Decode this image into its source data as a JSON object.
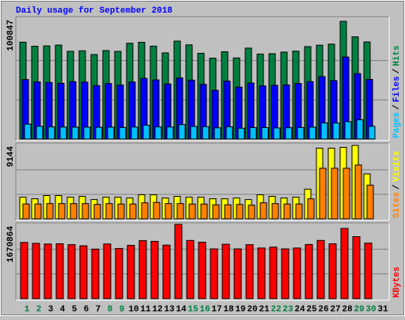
{
  "title": "Daily usage for September 2018",
  "legend_separator": "/",
  "chart_data": [
    {
      "type": "bar",
      "ylim": [
        0,
        100847
      ],
      "yticks": [
        100847
      ],
      "series": [
        {
          "name": "Hits",
          "color": "#008040",
          "values": [
            83000,
            79500,
            79800,
            80500,
            75200,
            75600,
            72400,
            75800,
            75100,
            82100,
            82900,
            79600,
            73800,
            83900,
            80700,
            73500,
            69300,
            74800,
            69500,
            77900,
            72800,
            73100,
            74500,
            75300,
            79200,
            80400,
            81300,
            100847,
            87600,
            83200,
            null
          ]
        },
        {
          "name": "Files",
          "color": "#0000ff",
          "values": [
            51000,
            49000,
            48500,
            47800,
            49200,
            48800,
            45800,
            47600,
            46300,
            48900,
            52000,
            50700,
            47200,
            52400,
            50500,
            46900,
            41800,
            49700,
            44500,
            48000,
            45600,
            46100,
            46400,
            47600,
            49200,
            53500,
            50100,
            70300,
            56100,
            51100,
            null
          ]
        },
        {
          "name": "Pages",
          "color": "#00c0ff",
          "values": [
            12800,
            10900,
            10400,
            10300,
            10200,
            10200,
            10100,
            10200,
            9900,
            10300,
            11900,
            10400,
            10300,
            12400,
            10800,
            10600,
            9600,
            10500,
            9300,
            9800,
            9800,
            9500,
            9700,
            9900,
            10200,
            13800,
            13700,
            14900,
            16500,
            10900,
            null
          ]
        }
      ]
    },
    {
      "type": "bar",
      "ylim": [
        0,
        9144
      ],
      "yticks": [
        9144
      ],
      "series": [
        {
          "name": "Visits",
          "color": "#ffff00",
          "values": [
            2700,
            2500,
            2900,
            2900,
            2700,
            2800,
            2400,
            2700,
            2700,
            2600,
            3000,
            3000,
            2600,
            2800,
            2700,
            2700,
            2500,
            2500,
            2600,
            2400,
            3000,
            2800,
            2600,
            2700,
            3700,
            8800,
            8800,
            8900,
            9144,
            5600,
            null
          ]
        },
        {
          "name": "Sites",
          "color": "#ff8000",
          "values": [
            1850,
            1850,
            1900,
            1900,
            1900,
            1900,
            1800,
            1900,
            1850,
            1850,
            2000,
            2050,
            1900,
            1900,
            1850,
            1850,
            1750,
            1750,
            1800,
            1700,
            2000,
            1900,
            1850,
            1850,
            2500,
            6300,
            6300,
            6300,
            6700,
            4200,
            null
          ]
        }
      ]
    },
    {
      "type": "bar",
      "ylim": [
        0,
        1670864
      ],
      "yticks": [
        1670864
      ],
      "categories": [
        "1",
        "2",
        "3",
        "4",
        "5",
        "6",
        "7",
        "8",
        "9",
        "10",
        "11",
        "12",
        "13",
        "14",
        "15",
        "16",
        "17",
        "18",
        "19",
        "20",
        "21",
        "22",
        "23",
        "24",
        "25",
        "26",
        "27",
        "28",
        "29",
        "30",
        "31"
      ],
      "category_colors": [
        "#008040",
        "#008040",
        "#000000",
        "#000000",
        "#000000",
        "#000000",
        "#000000",
        "#008040",
        "#008040",
        "#000000",
        "#000000",
        "#000000",
        "#000000",
        "#000000",
        "#008040",
        "#008040",
        "#000000",
        "#000000",
        "#000000",
        "#000000",
        "#000000",
        "#008040",
        "#008040",
        "#000000",
        "#000000",
        "#000000",
        "#000000",
        "#000000",
        "#008040",
        "#008040",
        "#000000"
      ],
      "series": [
        {
          "name": "KBytes",
          "color": "#ff0000",
          "values": [
            1265000,
            1245000,
            1230000,
            1235000,
            1215000,
            1190000,
            1115000,
            1230000,
            1130000,
            1200000,
            1305000,
            1290000,
            1205000,
            1670864,
            1310000,
            1270000,
            1120000,
            1225000,
            1120000,
            1215000,
            1140000,
            1160000,
            1120000,
            1140000,
            1220000,
            1310000,
            1235000,
            1580000,
            1395000,
            1250000,
            null
          ]
        }
      ]
    }
  ]
}
